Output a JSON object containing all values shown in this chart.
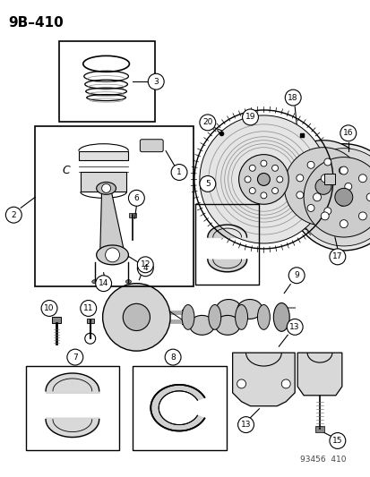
{
  "title": "9B–410",
  "watermark": "93456  410",
  "bg": "#ffffff",
  "lc": "black",
  "gray1": "#cccccc",
  "gray2": "#e8e8e8",
  "gray3": "#aaaaaa"
}
